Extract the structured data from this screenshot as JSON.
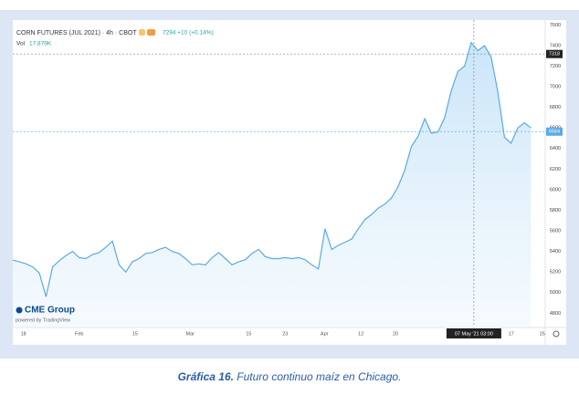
{
  "chart_data": {
    "type": "area",
    "title": "CORN FUTURES (JUL 2021) · 4h · CBOT",
    "quote": "7294 +10 (+0.14%)",
    "volume_label": "Vol",
    "volume_value": "17.879K",
    "logo": "CME Group",
    "powered_by": "powered by TradingView",
    "color": "#5aaae6",
    "grid": false,
    "values": [
      5315,
      5300,
      5280,
      5250,
      5190,
      4960,
      5250,
      5310,
      5360,
      5400,
      5340,
      5330,
      5370,
      5390,
      5440,
      5500,
      5270,
      5200,
      5300,
      5330,
      5380,
      5390,
      5420,
      5440,
      5400,
      5380,
      5330,
      5270,
      5280,
      5270,
      5340,
      5390,
      5330,
      5270,
      5300,
      5320,
      5380,
      5420,
      5350,
      5330,
      5330,
      5340,
      5330,
      5340,
      5320,
      5270,
      5230,
      5620,
      5420,
      5460,
      5490,
      5520,
      5620,
      5710,
      5760,
      5820,
      5860,
      5920,
      6030,
      6190,
      6420,
      6520,
      6690,
      6550,
      6560,
      6700,
      6960,
      7150,
      7200,
      7430,
      7350,
      7400,
      7290,
      6950,
      6510,
      6450,
      6600,
      6650,
      6600
    ],
    "xlim": [
      0,
      80
    ],
    "ylim": [
      4670,
      7630
    ],
    "xticks": [
      {
        "value": 1.6,
        "label": "18"
      },
      {
        "value": 10,
        "label": "Feb"
      },
      {
        "value": 18.4,
        "label": "15"
      },
      {
        "value": 26.7,
        "label": "Mar"
      },
      {
        "value": 35.5,
        "label": "15"
      },
      {
        "value": 41,
        "label": "23"
      },
      {
        "value": 46.9,
        "label": "Apr"
      },
      {
        "value": 52.4,
        "label": "12"
      },
      {
        "value": 57.6,
        "label": "20"
      },
      {
        "value": 75,
        "label": "17"
      },
      {
        "value": 79.7,
        "label": "25"
      }
    ],
    "yticks": [
      4800,
      5000,
      5200,
      5400,
      5600,
      5800,
      6000,
      6200,
      6400,
      6600,
      6800,
      7000,
      7200,
      7400,
      7600
    ],
    "crosshair_price": 7318,
    "crosshair_x": 69.4,
    "crosshair_time": "07 May '21 03:00",
    "last_price": 6564
  },
  "caption": {
    "label": "Gráfica 16.",
    "text": "Futuro continuo maíz en Chicago."
  }
}
